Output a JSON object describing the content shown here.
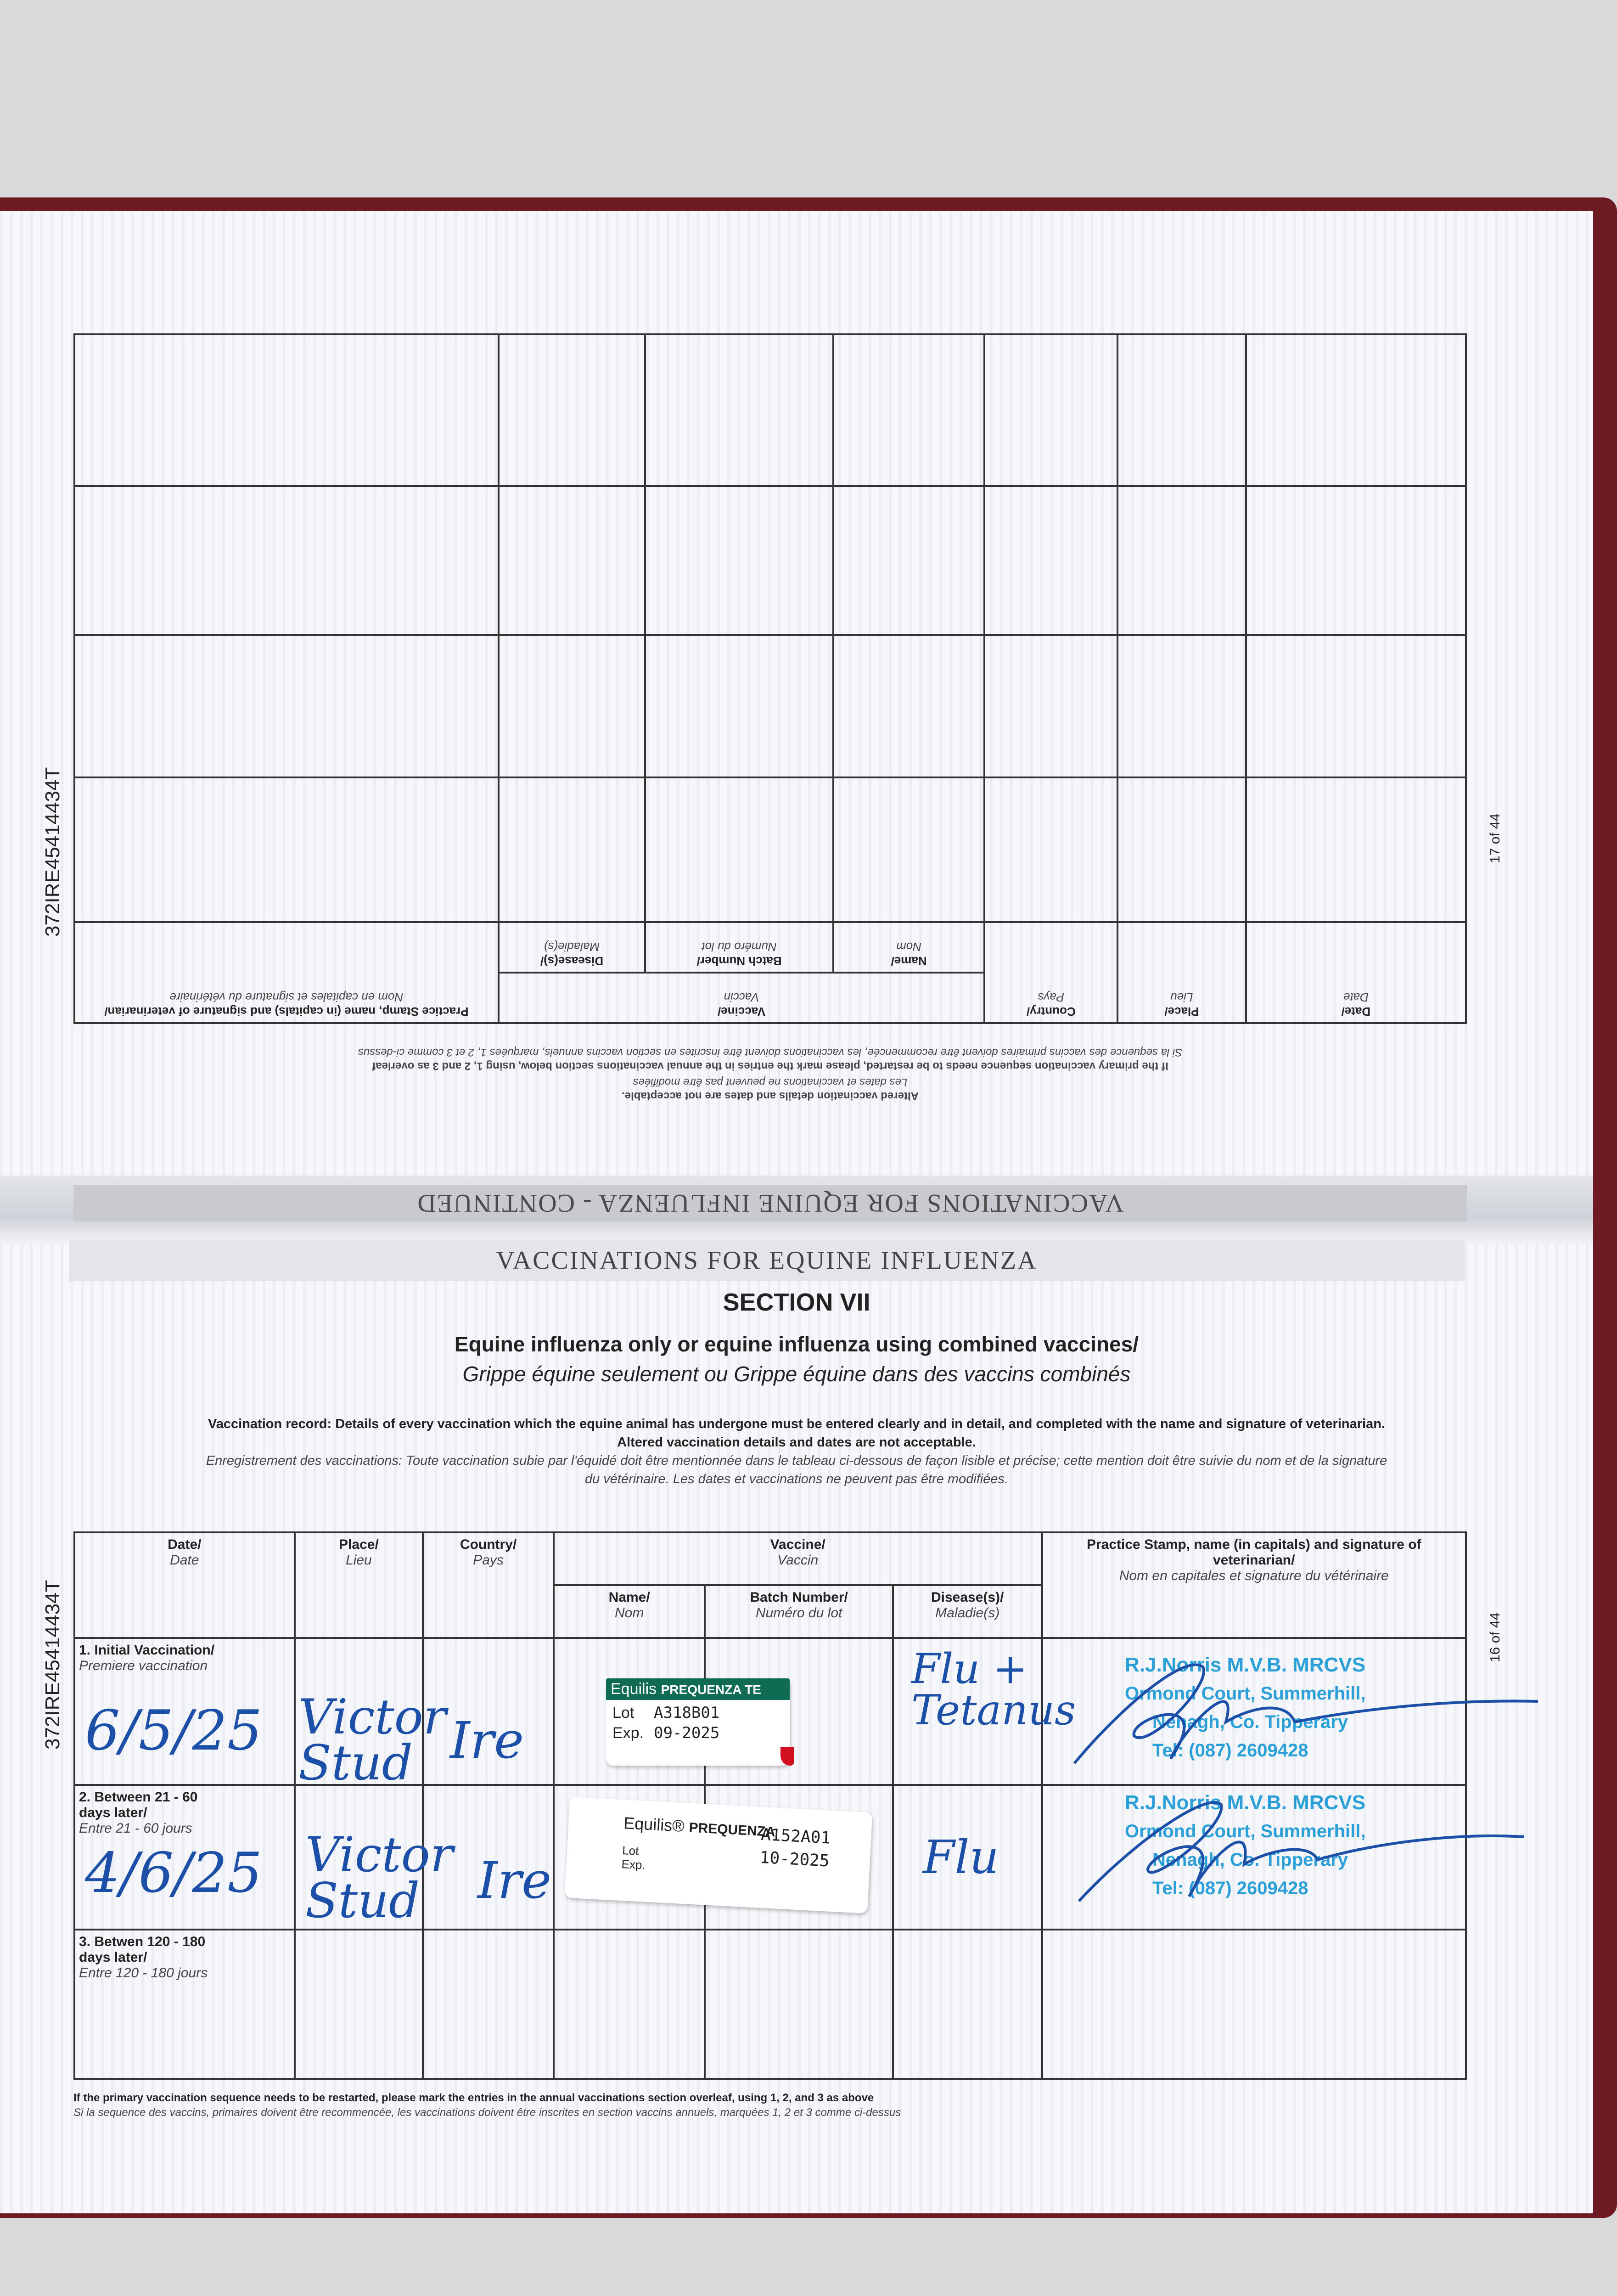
{
  "document_id": "372IRE45414434T",
  "top_page": {
    "page_number": "17 of 44",
    "title": "VACCINATIONS FOR EQUINE INFLUENZA - CONTINUED",
    "note_en_1": "Altered vaccination details and dates are not acceptable.",
    "note_fr_1": "Les dates et vaccinations ne peuvent pas être modifiées",
    "note_en_2": "If the primary vaccination sequence needs to be restarted, please mark the entries in the annual vaccinations section below, using 1, 2 and 3 as overleaf",
    "note_fr_2": "Si la sequence des vaccins primaires doivent être recommencée, les vaccinations doivent être inscrites en section vaccins annuels, marquées 1, 2 et 3 comme ci-dessus",
    "headers": {
      "date": "Date/",
      "date_fr": "Date",
      "place": "Place/",
      "place_fr": "Lieu",
      "country": "Country/",
      "country_fr": "Pays",
      "vaccine": "Vaccine/",
      "vaccine_fr": "Vaccin",
      "name": "Name/",
      "name_fr": "Nom",
      "batch": "Batch Number/",
      "batch_fr": "Numéro du lot",
      "disease": "Disease(s)/",
      "disease_fr": "Maladie(s)",
      "stamp": "Practice Stamp, name (in capitals) and signature of veterinarian/",
      "stamp_fr": "Nom en capitales et signature du vétérinaire"
    }
  },
  "bottom_page": {
    "page_number": "16 of 44",
    "band_title": "VACCINATIONS FOR EQUINE INFLUENZA",
    "section": "SECTION VII",
    "subtitle_en": "Equine influenza only or equine influenza using combined vaccines/",
    "subtitle_fr": "Grippe équine seulement ou Grippe équine dans des vaccins combinés",
    "record_en_1": "Vaccination record: Details of every vaccination which the equine animal has undergone must be entered clearly and in detail, and completed with the name and signature of veterinarian.",
    "record_en_2": "Altered vaccination details and dates are not acceptable.",
    "record_fr_1": "Enregistrement des vaccinations: Toute vaccination subie par l'équidé doit être mentionnée dans le tableau ci-dessous de façon lisible et précise; cette mention doit être suivie du nom et de la signature",
    "record_fr_2": "du vétérinaire. Les dates et vaccinations ne peuvent pas être modifiées.",
    "headers": {
      "date": "Date/",
      "date_fr": "Date",
      "place": "Place/",
      "place_fr": "Lieu",
      "country": "Country/",
      "country_fr": "Pays",
      "vaccine": "Vaccine/",
      "vaccine_fr": "Vaccin",
      "name": "Name/",
      "name_fr": "Nom",
      "batch": "Batch Number/",
      "batch_fr": "Numéro du lot",
      "disease": "Disease(s)/",
      "disease_fr": "Maladie(s)",
      "stamp": "Practice Stamp, name (in capitals) and signature of veterinarian/",
      "stamp_fr": "Nom en capitales et signature du vétérinaire"
    },
    "rows": [
      {
        "label": "1. Initial Vaccination/",
        "label_fr": "Premiere vaccination",
        "date": "6/5/25",
        "place": "Victor Stud",
        "country": "Ire",
        "disease": "Flu + Tetanus",
        "sticker": {
          "brand": "Equilis",
          "product": "PREQUENZA TE",
          "lot_label": "Lot",
          "exp_label": "Exp.",
          "lot": "A318B01",
          "exp": "09-2025"
        },
        "stamp": [
          "R.J.Norris M.V.B. MRCVS",
          "Ormond Court, Summerhill,",
          "Nenagh, Co. Tipperary",
          "Tel: (087) 2609428"
        ]
      },
      {
        "label": "2. Between 21 - 60 days later/",
        "label_fr": "Entre 21 - 60 jours",
        "date": "4/6/25",
        "place": "Victor Stud",
        "country": "Ire",
        "disease": "Flu",
        "sticker": {
          "brand": "Equilis®",
          "product": "PREQUENZA",
          "lot_label": "Lot",
          "exp_label": "Exp.",
          "lot": "A152A01",
          "exp": "10-2025"
        },
        "stamp": [
          "R.J.Norris M.V.B. MRCVS",
          "Ormond Court, Summerhill,",
          "Nenagh, Co. Tipperary",
          "Tel: (087) 2609428"
        ]
      },
      {
        "label": "3. Betwen 120 - 180 days later/",
        "label_fr": "Entre 120 - 180 jours"
      }
    ],
    "footnote_en": "If the primary vaccination sequence needs to be restarted, please mark the entries in the annual vaccinations section overleaf, using 1, 2, and 3 as above",
    "footnote_fr": "Si la sequence des vaccins, primaires doivent être recommencée, les vaccinations doivent être inscrites en section vaccins annuels, marquées 1, 2 et 3 comme ci-dessus"
  },
  "colors": {
    "ink": "#1c4fa8",
    "stamp": "#2b9fd8",
    "sticker_green": "#0f6b52",
    "cover": "#6e1a22"
  }
}
